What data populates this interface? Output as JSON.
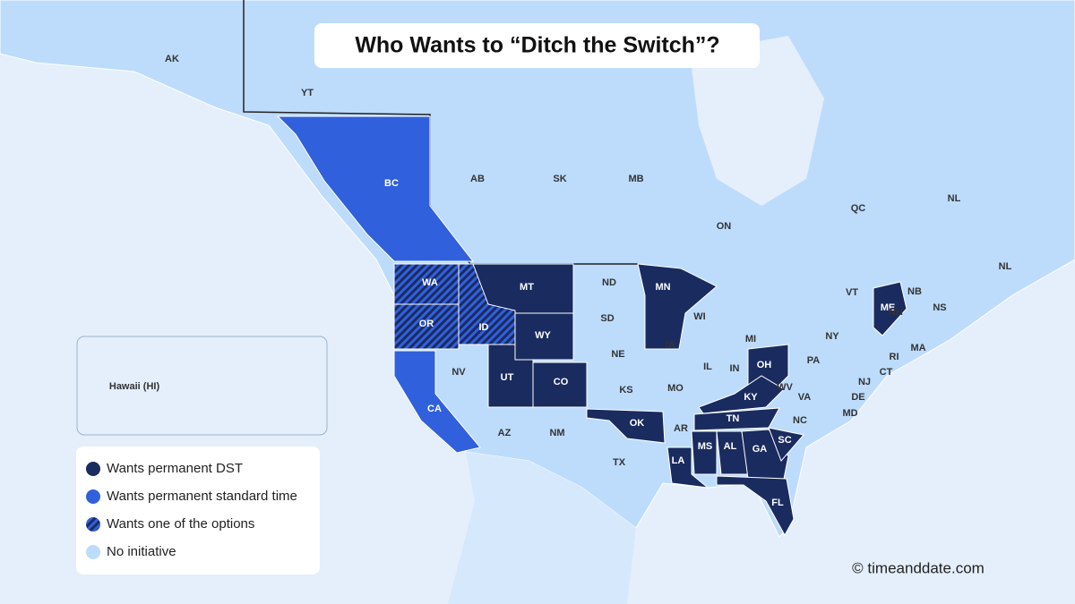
{
  "title": "Who Wants to “Ditch the Switch”?",
  "inset_label": "Hawaii (HI)",
  "credit": "© timeanddate.com",
  "legend": [
    {
      "label": "Wants permanent DST",
      "color": "#1a2b5f",
      "regions": [
        "MT",
        "MN",
        "WY",
        "UT",
        "CO",
        "OH",
        "KY",
        "OK",
        "TN",
        "LA",
        "MS",
        "AL",
        "GA",
        "SC",
        "FL",
        "ME"
      ]
    },
    {
      "label": "Wants permanent standard time",
      "color": "#3160dc",
      "regions": [
        "BC",
        "CA"
      ]
    },
    {
      "label": "Wants one of the options",
      "color": "#1a2b5f",
      "pattern": "hatch",
      "hatch_color": "#3160dc",
      "regions": [
        "WA",
        "OR",
        "ID"
      ]
    },
    {
      "label": "No initiative",
      "color": "#bddcfc",
      "regions": [
        "AK",
        "YT",
        "AB",
        "SK",
        "MB",
        "ON",
        "QC",
        "NL",
        "NL",
        "NB",
        "NS",
        "ND",
        "SD",
        "NE",
        "IA",
        "WI",
        "MI",
        "NV",
        "KS",
        "MO",
        "IL",
        "IN",
        "AZ",
        "NM",
        "AR",
        "TX",
        "NC",
        "VA",
        "WV",
        "PA",
        "NY",
        "VT",
        "NH",
        "MA",
        "RI",
        "CT",
        "NJ",
        "DE",
        "MD"
      ]
    }
  ]
}
